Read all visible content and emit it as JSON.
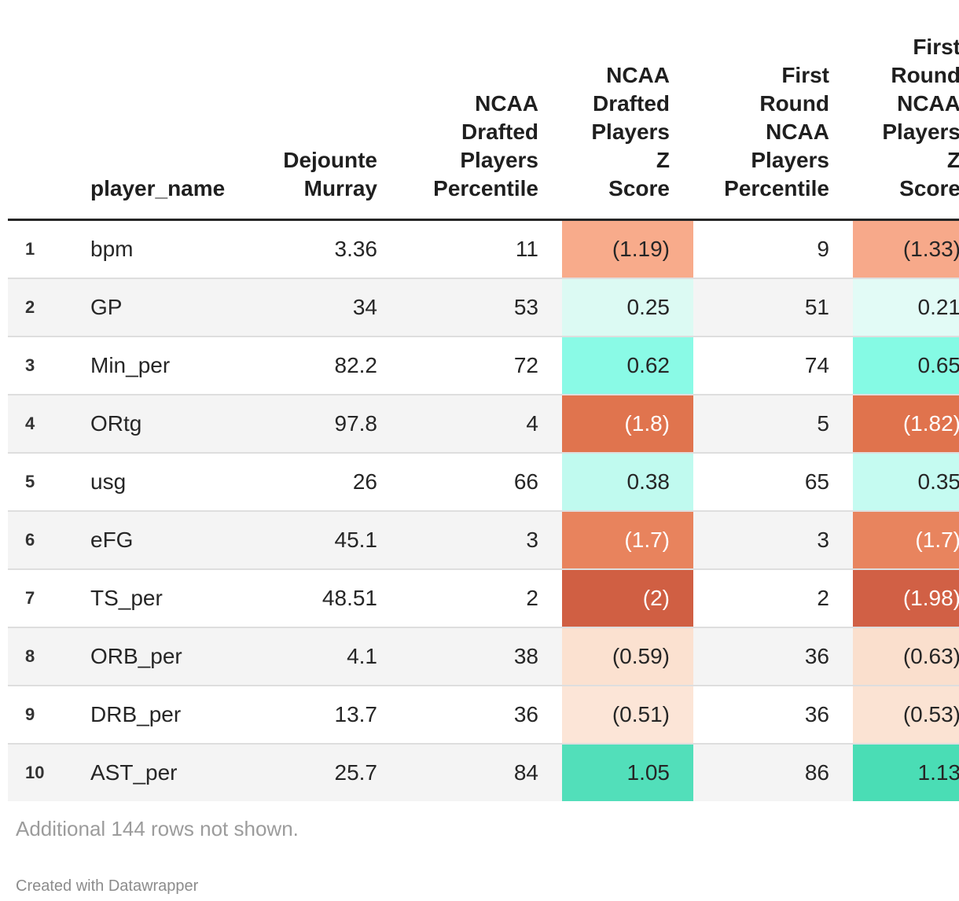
{
  "header": {
    "row_num": "",
    "player_name": "player_name",
    "murray": "Dejounte\nMurray",
    "ncaa_pct": "NCAA\nDrafted\nPlayers\nPercentile",
    "ncaa_z": "NCAA\nDrafted\nPlayers\nZ\nScore",
    "fr_pct": "First\nRound\nNCAA\nPlayers\nPercentile",
    "fr_z": "First\nRound\nNCAA\nPlayers\nZ\nScore"
  },
  "rows": [
    {
      "num": "1",
      "name": "bpm",
      "murray": "3.36",
      "p1": "11",
      "z1": "(1.19)",
      "z1_bg": "#F8AB8B",
      "z1_text": "#262626",
      "p2": "9",
      "z2": "(1.33)",
      "z2_bg": "#F7A98A",
      "z2_text": "#262626"
    },
    {
      "num": "2",
      "name": "GP",
      "murray": "34",
      "p1": "53",
      "z1": "0.25",
      "z1_bg": "#DCFAF3",
      "z1_text": "#262626",
      "p2": "51",
      "z2": "0.21",
      "z2_bg": "#E2FBF6",
      "z2_text": "#262626"
    },
    {
      "num": "3",
      "name": "Min_per",
      "murray": "82.2",
      "p1": "72",
      "z1": "0.62",
      "z1_bg": "#8AFAE6",
      "z1_text": "#262626",
      "p2": "74",
      "z2": "0.65",
      "z2_bg": "#85FAE4",
      "z2_text": "#262626"
    },
    {
      "num": "4",
      "name": "ORtg",
      "murray": "97.8",
      "p1": "4",
      "z1": "(1.8)",
      "z1_bg": "#E0744E",
      "z1_text": "#FFFFFF",
      "p2": "5",
      "z2": "(1.82)",
      "z2_bg": "#E0734D",
      "z2_text": "#FFFFFF"
    },
    {
      "num": "5",
      "name": "usg",
      "murray": "26",
      "p1": "66",
      "z1": "0.38",
      "z1_bg": "#C0FAEF",
      "z1_text": "#262626",
      "p2": "65",
      "z2": "0.35",
      "z2_bg": "#C5FBF1",
      "z2_text": "#262626"
    },
    {
      "num": "6",
      "name": "eFG",
      "murray": "45.1",
      "p1": "3",
      "z1": "(1.7)",
      "z1_bg": "#E8835D",
      "z1_text": "#FFFFFF",
      "p2": "3",
      "z2": "(1.7)",
      "z2_bg": "#E8845E",
      "z2_text": "#FFFFFF"
    },
    {
      "num": "7",
      "name": "TS_per",
      "murray": "48.51",
      "p1": "2",
      "z1": "(2)",
      "z1_bg": "#D05F43",
      "z1_text": "#FFFFFF",
      "p2": "2",
      "z2": "(1.98)",
      "z2_bg": "#D16045",
      "z2_text": "#FFFFFF"
    },
    {
      "num": "8",
      "name": "ORB_per",
      "murray": "4.1",
      "p1": "38",
      "z1": "(0.59)",
      "z1_bg": "#FBE1D0",
      "z1_text": "#262626",
      "p2": "36",
      "z2": "(0.63)",
      "z2_bg": "#FADFCD",
      "z2_text": "#262626"
    },
    {
      "num": "9",
      "name": "DRB_per",
      "murray": "13.7",
      "p1": "36",
      "z1": "(0.51)",
      "z1_bg": "#FCE5D7",
      "z1_text": "#262626",
      "p2": "36",
      "z2": "(0.53)",
      "z2_bg": "#FBE3D3",
      "z2_text": "#262626"
    },
    {
      "num": "10",
      "name": "AST_per",
      "murray": "25.7",
      "p1": "84",
      "z1": "1.05",
      "z1_bg": "#52DFBA",
      "z1_text": "#262626",
      "p2": "86",
      "z2": "1.13",
      "z2_bg": "#4ADDB5",
      "z2_text": "#262626"
    }
  ],
  "footer": {
    "note": "Additional 144 rows not shown.",
    "credit": "Created with Datawrapper"
  },
  "colors": {
    "header_rule": "#262626",
    "row_alt_bg": "#F4F4F4",
    "row_separator": "#DEDEDE",
    "positive_scale_max": "#4ADDB5",
    "negative_scale_max": "#D05F43"
  },
  "chart_data": {
    "type": "table",
    "title": "",
    "columns": [
      "player_name",
      "Dejounte Murray",
      "NCAA Drafted Players Percentile",
      "NCAA Drafted Players Z Score",
      "First Round NCAA Players Percentile",
      "First Round NCAA Players Z Score"
    ],
    "rows": [
      [
        "bpm",
        3.36,
        11,
        -1.19,
        9,
        -1.33
      ],
      [
        "GP",
        34,
        53,
        0.25,
        51,
        0.21
      ],
      [
        "Min_per",
        82.2,
        72,
        0.62,
        74,
        0.65
      ],
      [
        "ORtg",
        97.8,
        4,
        -1.8,
        5,
        -1.82
      ],
      [
        "usg",
        26,
        66,
        0.38,
        65,
        0.35
      ],
      [
        "eFG",
        45.1,
        3,
        -1.7,
        3,
        -1.7
      ],
      [
        "TS_per",
        48.51,
        2,
        -2.0,
        2,
        -1.98
      ],
      [
        "ORB_per",
        4.1,
        38,
        -0.59,
        36,
        -0.63
      ],
      [
        "DRB_per",
        13.7,
        36,
        -0.51,
        36,
        -0.53
      ],
      [
        "AST_per",
        25.7,
        84,
        1.05,
        86,
        1.13
      ]
    ],
    "notes": "Z-score cells are heatmap colored: teal for positive values, orange/red for negative values (negatives shown in parentheses). Last column is clipped at the right edge of the image.",
    "footer_note": "Additional 144 rows not shown."
  }
}
